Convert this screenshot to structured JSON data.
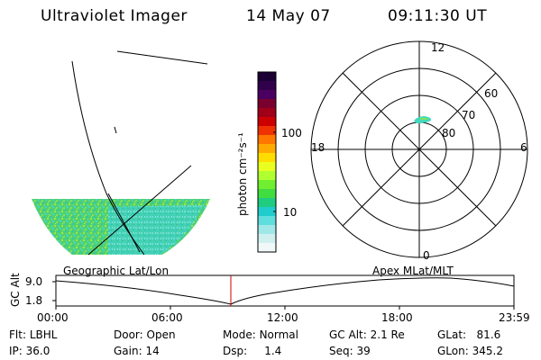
{
  "header": {
    "title": "Ultraviolet Imager",
    "date": "14 May 07",
    "time": "09:11:30 UT"
  },
  "colorbar": {
    "label": "photon cm⁻²s⁻¹",
    "ticks": [
      "100",
      "10"
    ],
    "colors": [
      "#1a0033",
      "#30004a",
      "#4a0060",
      "#7a0030",
      "#a00018",
      "#cc0000",
      "#ee3300",
      "#ff7700",
      "#ffaa00",
      "#ffdd00",
      "#e8ff20",
      "#b0ff30",
      "#70ee30",
      "#40dd40",
      "#20cc80",
      "#20cccc",
      "#60dddd",
      "#a0e8e8",
      "#d0f0f0",
      "#f0f8f8"
    ]
  },
  "polar": {
    "lat_labels": [
      "60",
      "70",
      "80"
    ],
    "mlt_labels": {
      "top": "12",
      "left": "18",
      "right": "6",
      "bottom": "0"
    }
  },
  "panel_labels": {
    "left": "Geographic Lat/Lon",
    "right": "Apex MLat/MLT"
  },
  "alt_plot": {
    "axis_label": "GC Alt",
    "y_ticks": [
      "9.0",
      "1.8"
    ],
    "x_ticks": [
      "00:00",
      "06:00",
      "12:00",
      "18:00",
      "23:59"
    ],
    "marker_color": "#cc0000"
  },
  "meta": {
    "filter_label": "Flt:",
    "filter_value": "LBHL",
    "ip_label": "IP:",
    "ip_value": "36.0",
    "door_label": "Door:",
    "door_value": "Open",
    "gain_label": "Gain:",
    "gain_value": "14",
    "mode_label": "Mode:",
    "mode_value": "Normal",
    "dsp_label": "Dsp:",
    "dsp_value": "1.4",
    "gcalt_label": "GC Alt:",
    "gcalt_value": "2.1 Re",
    "seq_label": "Seq:",
    "seq_value": "39",
    "glat_label": "GLat:",
    "glat_value": "81.6",
    "glon_label": "GLon:",
    "glon_value": "345.2"
  }
}
